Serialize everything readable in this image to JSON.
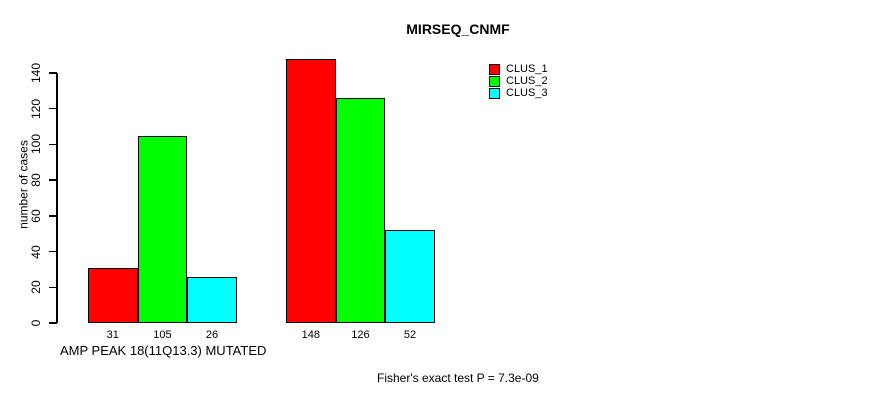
{
  "chart_data": {
    "type": "bar",
    "title": "MIRSEQ_CNMF",
    "ylabel": "number of cases",
    "xlabel": "AMP PEAK 18(11Q13.3) MUTATED",
    "annotation": "Fisher's exact test P = 7.3e-09",
    "categories": [
      "AMP PEAK 18(11Q13.3) MUTATED",
      ""
    ],
    "series": [
      {
        "name": "CLUS_1",
        "color": "#ff0000",
        "values": [
          31,
          148
        ]
      },
      {
        "name": "CLUS_2",
        "color": "#00ff00",
        "values": [
          105,
          126
        ]
      },
      {
        "name": "CLUS_3",
        "color": "#00ffff",
        "values": [
          26,
          52
        ]
      }
    ],
    "bar_value_labels": [
      [
        "31",
        "105",
        "26"
      ],
      [
        "148",
        "126",
        "52"
      ]
    ],
    "yticks": [
      "0",
      "20",
      "40",
      "60",
      "80",
      "100",
      "120",
      "140"
    ],
    "ylim": [
      0,
      140
    ],
    "grid": false,
    "legend_position": "top-right",
    "axis_color": "#000000",
    "background_color": "#ffffff"
  }
}
